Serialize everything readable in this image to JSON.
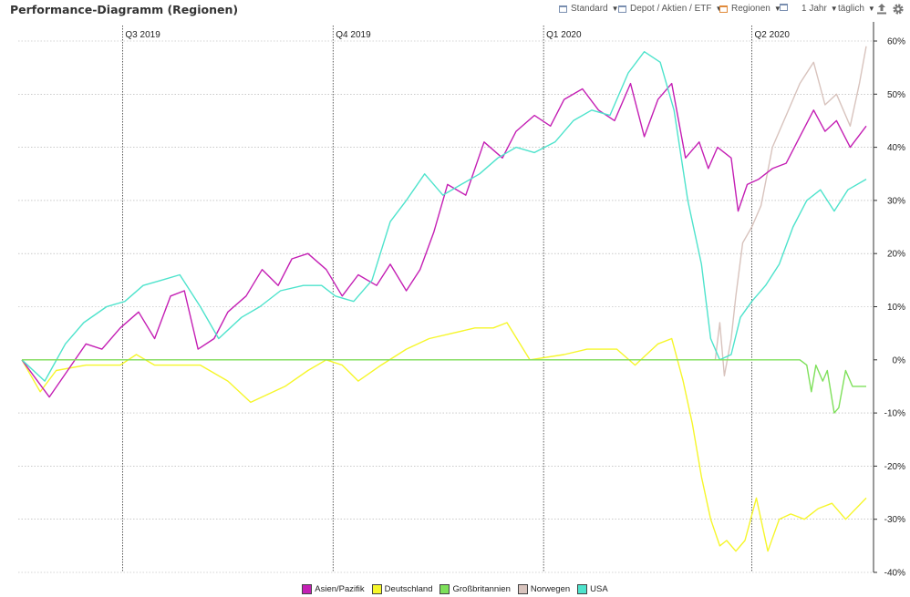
{
  "header": {
    "title": "Performance-Diagramm (Regionen)",
    "toolbar": {
      "standard": "Standard",
      "depot": "Depot / Aktien / ETF",
      "regionen": "Regionen",
      "period": "1 Jahr",
      "interval": "täglich"
    },
    "icons": [
      "view-icon",
      "export-icon",
      "gear-icon"
    ]
  },
  "legend": {
    "items": [
      {
        "label": "Asien/Pazifik",
        "color": "#c41fb4"
      },
      {
        "label": "Deutschland",
        "color": "#f6f62a"
      },
      {
        "label": "Großbritannien",
        "color": "#7ee05a"
      },
      {
        "label": "Norwegen",
        "color": "#d8c3bd"
      },
      {
        "label": "USA",
        "color": "#4ee3cc"
      }
    ]
  },
  "chart_data": {
    "type": "line",
    "title": "Performance-Diagramm (Regionen)",
    "xlabel": "",
    "ylabel": "",
    "y_tick_labels": [
      "60%",
      "50%",
      "40%",
      "30%",
      "20%",
      "10%",
      "0%",
      "-10%",
      "-20%",
      "-30%",
      "-40%"
    ],
    "ylim": [
      -40,
      60
    ],
    "x_tick_labels": [
      "Q3 2019",
      "Q4 2019",
      "Q1 2020",
      "Q2 2020"
    ],
    "x_range": [
      "2019-05-18",
      "2020-05-21"
    ],
    "x_ticks": [
      "2019-07-01",
      "2019-10-01",
      "2020-01-01",
      "2020-04-01"
    ],
    "grid": "dashed, vertical at quarter starts, horizontal at every 10%",
    "legend_position": "bottom-center",
    "series": [
      {
        "name": "Asien/Pazifik",
        "color": "#c41fb4",
        "x": [
          "2019-05-18",
          "2019-05-30",
          "2019-06-07",
          "2019-06-15",
          "2019-06-22",
          "2019-06-30",
          "2019-07-08",
          "2019-07-15",
          "2019-07-22",
          "2019-07-28",
          "2019-08-03",
          "2019-08-10",
          "2019-08-16",
          "2019-08-24",
          "2019-08-31",
          "2019-09-07",
          "2019-09-13",
          "2019-09-20",
          "2019-09-28",
          "2019-10-05",
          "2019-10-12",
          "2019-10-20",
          "2019-10-26",
          "2019-11-02",
          "2019-11-08",
          "2019-11-14",
          "2019-11-20",
          "2019-11-28",
          "2019-12-06",
          "2019-12-14",
          "2019-12-20",
          "2019-12-28",
          "2020-01-04",
          "2020-01-10",
          "2020-01-18",
          "2020-01-25",
          "2020-02-01",
          "2020-02-08",
          "2020-02-14",
          "2020-02-20",
          "2020-02-26",
          "2020-03-03",
          "2020-03-09",
          "2020-03-13",
          "2020-03-17",
          "2020-03-23",
          "2020-03-26",
          "2020-03-30",
          "2020-04-04",
          "2020-04-10",
          "2020-04-16",
          "2020-04-22",
          "2020-04-28",
          "2020-05-03",
          "2020-05-08",
          "2020-05-14",
          "2020-05-21"
        ],
        "y": [
          0,
          -7,
          -2,
          3,
          2,
          6,
          9,
          4,
          12,
          13,
          2,
          4,
          9,
          12,
          17,
          14,
          19,
          20,
          17,
          12,
          16,
          14,
          18,
          13,
          17,
          24,
          33,
          31,
          41,
          38,
          43,
          46,
          44,
          49,
          51,
          47,
          45,
          52,
          42,
          49,
          52,
          38,
          41,
          36,
          40,
          38,
          28,
          33,
          34,
          36,
          37,
          42,
          47,
          43,
          45,
          40,
          44
        ]
      },
      {
        "name": "Deutschland",
        "color": "#f6f62a",
        "x": [
          "2019-05-18",
          "2019-05-26",
          "2019-06-02",
          "2019-06-15",
          "2019-06-30",
          "2019-07-07",
          "2019-07-15",
          "2019-07-28",
          "2019-08-04",
          "2019-08-16",
          "2019-08-26",
          "2019-09-10",
          "2019-09-20",
          "2019-09-28",
          "2019-10-05",
          "2019-10-12",
          "2019-10-22",
          "2019-11-02",
          "2019-11-12",
          "2019-11-22",
          "2019-12-02",
          "2019-12-10",
          "2019-12-16",
          "2019-12-26",
          "2020-01-10",
          "2020-01-20",
          "2020-02-02",
          "2020-02-10",
          "2020-02-20",
          "2020-02-26",
          "2020-03-02",
          "2020-03-06",
          "2020-03-10",
          "2020-03-14",
          "2020-03-18",
          "2020-03-21",
          "2020-03-25",
          "2020-03-29",
          "2020-04-03",
          "2020-04-08",
          "2020-04-13",
          "2020-04-18",
          "2020-04-24",
          "2020-04-30",
          "2020-05-06",
          "2020-05-12",
          "2020-05-21"
        ],
        "y": [
          0,
          -6,
          -2,
          -1,
          -1,
          1,
          -1,
          -1,
          -1,
          -4,
          -8,
          -5,
          -2,
          0,
          -1,
          -4,
          -1,
          2,
          4,
          5,
          6,
          6,
          7,
          0,
          1,
          2,
          2,
          -1,
          3,
          4,
          -4,
          -12,
          -22,
          -30,
          -35,
          -34,
          -36,
          -34,
          -26,
          -36,
          -30,
          -29,
          -30,
          -28,
          -27,
          -30,
          -26
        ]
      },
      {
        "name": "Großbritannien",
        "color": "#7ee05a",
        "x": [
          "2019-05-18",
          "2020-04-22",
          "2020-04-25",
          "2020-04-27",
          "2020-04-29",
          "2020-05-02",
          "2020-05-04",
          "2020-05-07",
          "2020-05-09",
          "2020-05-12",
          "2020-05-15",
          "2020-05-21"
        ],
        "y": [
          0,
          0,
          -1,
          -6,
          -1,
          -4,
          -2,
          -10,
          -9,
          -2,
          -5,
          -5
        ]
      },
      {
        "name": "Norwegen",
        "color": "#d8c3bd",
        "x": [
          "2019-05-18",
          "2020-03-16",
          "2020-03-18",
          "2020-03-20",
          "2020-03-23",
          "2020-03-25",
          "2020-03-28",
          "2020-04-01",
          "2020-04-05",
          "2020-04-10",
          "2020-04-16",
          "2020-04-22",
          "2020-04-28",
          "2020-05-03",
          "2020-05-08",
          "2020-05-14",
          "2020-05-18",
          "2020-05-21"
        ],
        "y": [
          0,
          0,
          7,
          -3,
          4,
          12,
          22,
          25,
          29,
          40,
          46,
          52,
          56,
          48,
          50,
          44,
          52,
          59
        ]
      },
      {
        "name": "USA",
        "color": "#4ee3cc",
        "x": [
          "2019-05-18",
          "2019-05-28",
          "2019-06-06",
          "2019-06-14",
          "2019-06-24",
          "2019-07-02",
          "2019-07-10",
          "2019-07-18",
          "2019-07-26",
          "2019-08-04",
          "2019-08-12",
          "2019-08-22",
          "2019-08-30",
          "2019-09-08",
          "2019-09-18",
          "2019-09-26",
          "2019-10-02",
          "2019-10-10",
          "2019-10-18",
          "2019-10-26",
          "2019-11-02",
          "2019-11-10",
          "2019-11-18",
          "2019-11-26",
          "2019-12-04",
          "2019-12-12",
          "2019-12-20",
          "2019-12-28",
          "2020-01-06",
          "2020-01-14",
          "2020-01-22",
          "2020-01-30",
          "2020-02-07",
          "2020-02-14",
          "2020-02-21",
          "2020-02-27",
          "2020-03-04",
          "2020-03-10",
          "2020-03-14",
          "2020-03-18",
          "2020-03-23",
          "2020-03-27",
          "2020-04-01",
          "2020-04-07",
          "2020-04-13",
          "2020-04-19",
          "2020-04-25",
          "2020-05-01",
          "2020-05-07",
          "2020-05-13",
          "2020-05-21"
        ],
        "y": [
          0,
          -4,
          3,
          7,
          10,
          11,
          14,
          15,
          16,
          10,
          4,
          8,
          10,
          13,
          14,
          14,
          12,
          11,
          15,
          26,
          30,
          35,
          31,
          33,
          35,
          38,
          40,
          39,
          41,
          45,
          47,
          46,
          54,
          58,
          56,
          47,
          30,
          18,
          4,
          0,
          1,
          8,
          11,
          14,
          18,
          25,
          30,
          32,
          28,
          32,
          34
        ]
      }
    ]
  }
}
